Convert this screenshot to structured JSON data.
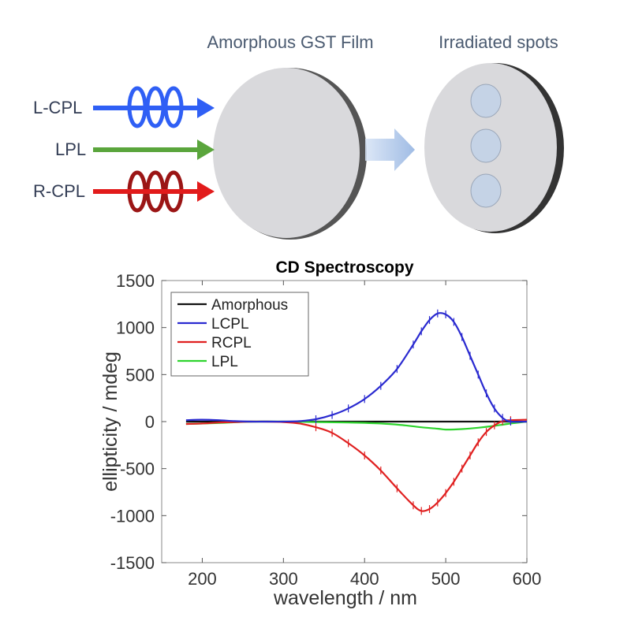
{
  "diagram": {
    "film_label": "Amorphous GST Film",
    "spots_label": "Irradiated spots",
    "beams": [
      {
        "label": "L-CPL",
        "color": "#2f5ff5",
        "helix": true
      },
      {
        "label": "LPL",
        "color": "#5aa53c",
        "helix": false
      },
      {
        "label": "R-CPL",
        "color": "#e21b1b",
        "helix": true
      }
    ],
    "film_color": "#d9d9dc",
    "spot_color": "#c5d3e6"
  },
  "chart_data": {
    "type": "line",
    "title": "CD Spectroscopy",
    "xlabel": "wavelength / nm",
    "ylabel": "ellipticity / mdeg",
    "xlim": [
      150,
      600
    ],
    "ylim": [
      -1500,
      1500
    ],
    "xticks": [
      200,
      300,
      400,
      500,
      600
    ],
    "yticks": [
      1500,
      1000,
      500,
      0,
      -500,
      -1000,
      -1500
    ],
    "legend_position": "top-left",
    "series": [
      {
        "name": "Amorphous",
        "color": "#111111",
        "x": [
          180,
          250,
          300,
          350,
          400,
          450,
          500,
          550,
          600
        ],
        "y": [
          0,
          0,
          0,
          0,
          0,
          0,
          0,
          0,
          0
        ]
      },
      {
        "name": "LCPL",
        "color": "#2a2ad0",
        "x": [
          180,
          200,
          220,
          240,
          260,
          280,
          300,
          320,
          340,
          360,
          380,
          400,
          420,
          440,
          460,
          470,
          480,
          490,
          500,
          510,
          520,
          530,
          540,
          550,
          560,
          570,
          580,
          600
        ],
        "y": [
          15,
          20,
          15,
          5,
          0,
          0,
          0,
          5,
          25,
          70,
          140,
          240,
          380,
          560,
          820,
          960,
          1080,
          1150,
          1140,
          1060,
          900,
          700,
          500,
          300,
          140,
          40,
          0,
          0
        ]
      },
      {
        "name": "RCPL",
        "color": "#e02020",
        "x": [
          180,
          200,
          220,
          240,
          260,
          280,
          300,
          320,
          340,
          360,
          380,
          400,
          420,
          440,
          460,
          470,
          480,
          490,
          500,
          510,
          520,
          530,
          540,
          550,
          560,
          570,
          580,
          600
        ],
        "y": [
          -25,
          -20,
          -10,
          -5,
          0,
          0,
          -5,
          -20,
          -60,
          -120,
          -230,
          -360,
          -520,
          -710,
          -890,
          -950,
          -930,
          -860,
          -760,
          -640,
          -500,
          -360,
          -220,
          -110,
          -40,
          5,
          15,
          20
        ]
      },
      {
        "name": "LPL",
        "color": "#2ed42e",
        "x": [
          180,
          220,
          260,
          300,
          340,
          380,
          420,
          450,
          470,
          490,
          500,
          520,
          540,
          560,
          580,
          600
        ],
        "y": [
          -25,
          -15,
          0,
          0,
          -5,
          -10,
          -20,
          -40,
          -60,
          -75,
          -85,
          -80,
          -65,
          -45,
          -20,
          0
        ]
      }
    ]
  }
}
